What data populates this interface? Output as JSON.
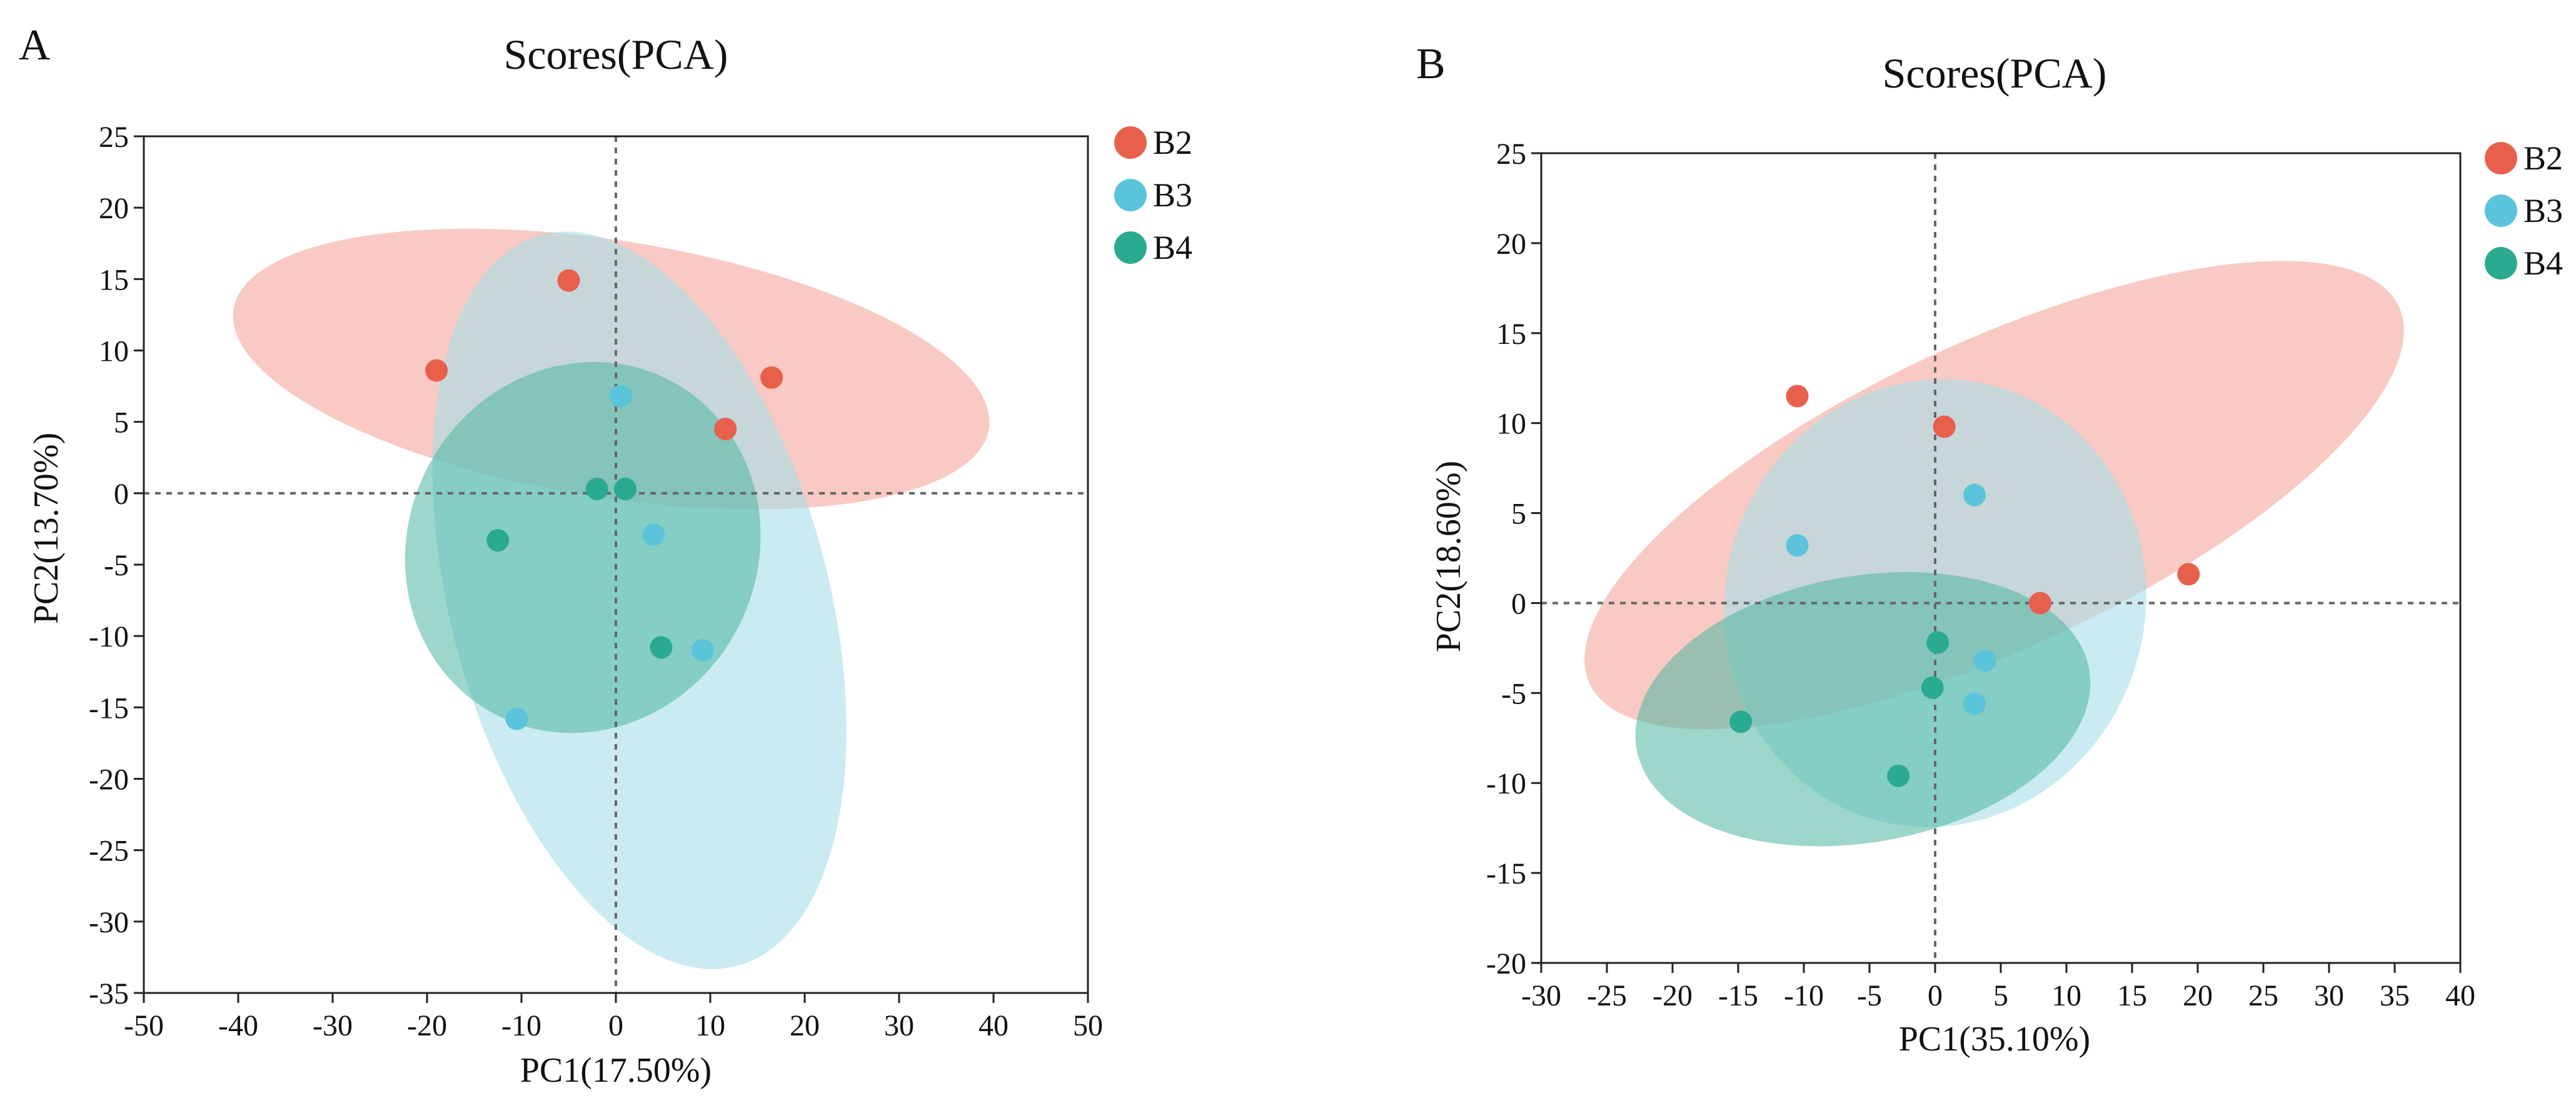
{
  "figure": {
    "background": "#ffffff",
    "axis_color": "#222222",
    "zero_line_color": "#666666"
  },
  "chart_data": [
    {
      "panel_label": "A",
      "type": "scatter",
      "title": "Scores(PCA)",
      "xlabel": "PC1(17.50%)",
      "ylabel": "PC2(13.70%)",
      "xlim": [
        -50,
        50
      ],
      "ylim": [
        -35,
        25
      ],
      "xticks": [
        -50,
        -40,
        -30,
        -20,
        -10,
        0,
        10,
        20,
        30,
        40,
        50
      ],
      "yticks": [
        -35,
        -30,
        -25,
        -20,
        -15,
        -10,
        -5,
        0,
        5,
        10,
        15,
        20,
        25
      ],
      "grid": false,
      "legend_position": "top-right outside",
      "series": [
        {
          "name": "B2",
          "color": "#E8604C",
          "points": [
            [
              -19,
              8.6
            ],
            [
              -5,
              14.9
            ],
            [
              11.6,
              4.5
            ],
            [
              16.5,
              8.1
            ]
          ],
          "ellipse": {
            "cx": -0.5,
            "cy": 8.7,
            "rx": 40.5,
            "ry": 9.0,
            "angle": -9,
            "fill": "#F4A69B",
            "opacity": 0.6
          }
        },
        {
          "name": "B3",
          "color": "#5BC4DA",
          "points": [
            [
              0.5,
              6.8
            ],
            [
              4,
              -2.9
            ],
            [
              9.2,
              -11
            ],
            [
              -10.5,
              -15.8
            ]
          ],
          "ellipse": {
            "cx": 2.5,
            "cy": -7.5,
            "rx": 20.0,
            "ry": 26.5,
            "angle": 15,
            "fill": "#A6DDE8",
            "opacity": 0.6
          }
        },
        {
          "name": "B4",
          "color": "#2AAA90",
          "points": [
            [
              -2,
              0.3
            ],
            [
              1,
              0.3
            ],
            [
              -12.5,
              -3.3
            ],
            [
              4.8,
              -10.8
            ]
          ],
          "ellipse": {
            "cx": -3.5,
            "cy": -3.8,
            "rx": 18.5,
            "ry": 13.2,
            "angle": -28,
            "fill": "#4DB6A0",
            "opacity": 0.55
          }
        }
      ]
    },
    {
      "panel_label": "B",
      "type": "scatter",
      "title": "Scores(PCA)",
      "xlabel": "PC1(35.10%)",
      "ylabel": "PC2(18.60%)",
      "xlim": [
        -30,
        40
      ],
      "ylim": [
        -20,
        25
      ],
      "xticks": [
        -30,
        -25,
        -20,
        -15,
        -10,
        -5,
        0,
        5,
        10,
        15,
        20,
        25,
        30,
        35,
        40
      ],
      "yticks": [
        -20,
        -15,
        -10,
        -5,
        0,
        5,
        10,
        15,
        20,
        25
      ],
      "grid": false,
      "legend_position": "top-right outside",
      "series": [
        {
          "name": "B2",
          "color": "#E8604C",
          "points": [
            [
              -10.5,
              11.5
            ],
            [
              0.7,
              9.8
            ],
            [
              8,
              0
            ],
            [
              19.3,
              1.6
            ]
          ],
          "ellipse": {
            "cx": 4.5,
            "cy": 6.0,
            "rx": 34.0,
            "ry": 8.5,
            "angle": 25,
            "fill": "#F4A69B",
            "opacity": 0.6
          }
        },
        {
          "name": "B3",
          "color": "#5BC4DA",
          "points": [
            [
              -10.5,
              3.2
            ],
            [
              3,
              6
            ],
            [
              3.8,
              -3.2
            ],
            [
              3,
              -5.6
            ]
          ],
          "ellipse": {
            "cx": 0,
            "cy": 0,
            "rx": 16.0,
            "ry": 12.5,
            "angle": -15,
            "fill": "#A6DDE8",
            "opacity": 0.6
          }
        },
        {
          "name": "B4",
          "color": "#2AAA90",
          "points": [
            [
              0.2,
              -2.2
            ],
            [
              -0.2,
              -4.7
            ],
            [
              -14.8,
              -6.6
            ],
            [
              -2.8,
              -9.6
            ]
          ],
          "ellipse": {
            "cx": -5.5,
            "cy": -5.9,
            "rx": 17.5,
            "ry": 7.4,
            "angle": 10,
            "fill": "#4DB6A0",
            "opacity": 0.55
          }
        }
      ]
    }
  ]
}
